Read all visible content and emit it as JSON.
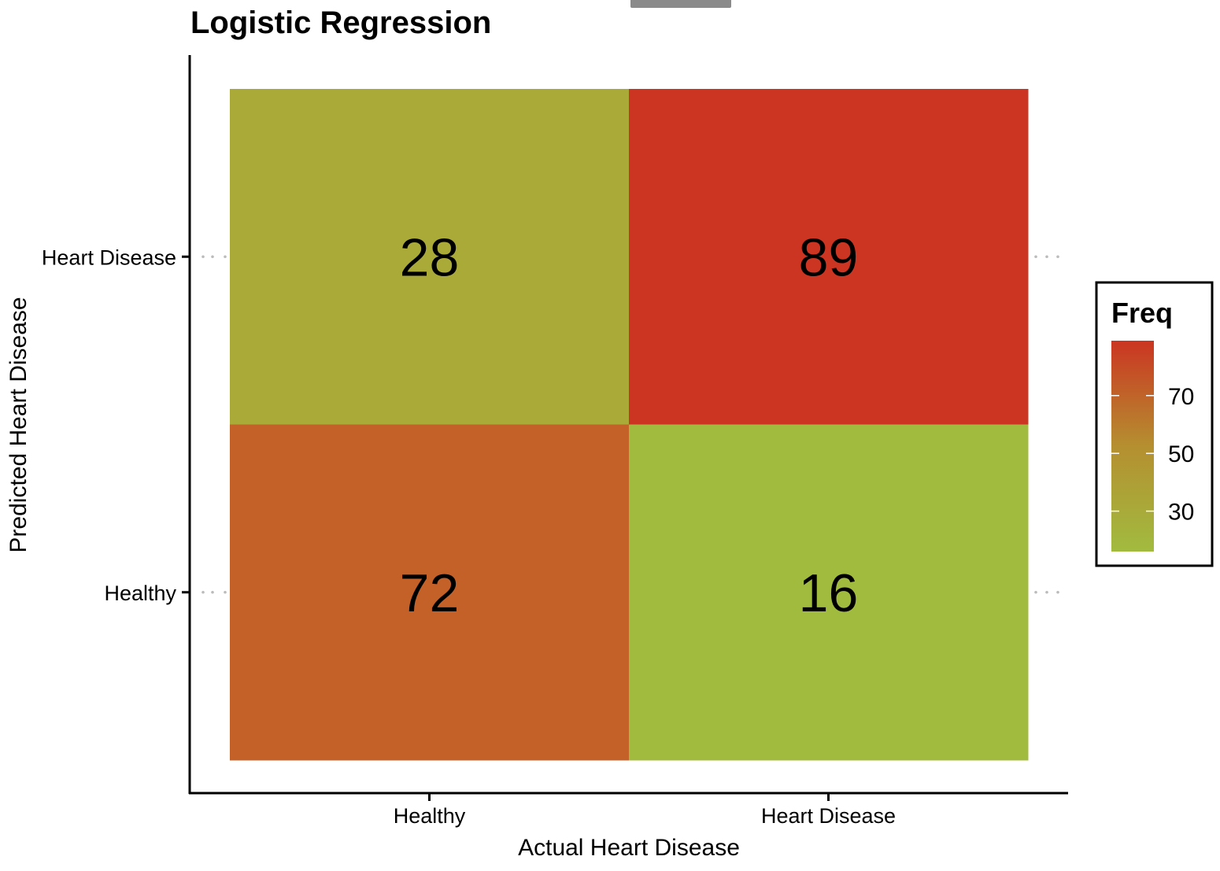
{
  "chart_data": {
    "type": "heatmap",
    "title": "Logistic Regression",
    "xlabel": "Actual Heart Disease",
    "ylabel": "Predicted Heart Disease",
    "x_categories": [
      "Healthy",
      "Heart Disease"
    ],
    "y_categories": [
      "Heart Disease",
      "Healthy"
    ],
    "cells": [
      {
        "x": "Healthy",
        "y": "Heart Disease",
        "value": 28,
        "color": "#aaaa38"
      },
      {
        "x": "Heart Disease",
        "y": "Heart Disease",
        "value": 89,
        "color": "#cb3522"
      },
      {
        "x": "Healthy",
        "y": "Healthy",
        "value": 72,
        "color": "#c46128"
      },
      {
        "x": "Heart Disease",
        "y": "Healthy",
        "value": 16,
        "color": "#a1bb3f"
      }
    ],
    "legend": {
      "title": "Freq",
      "position": "right",
      "range": [
        16,
        89
      ],
      "ticks": [
        30,
        50,
        70
      ],
      "color_low": "#a1bb3f",
      "color_mid": "#b58f30",
      "color_high": "#cb3522"
    },
    "grid": false
  }
}
